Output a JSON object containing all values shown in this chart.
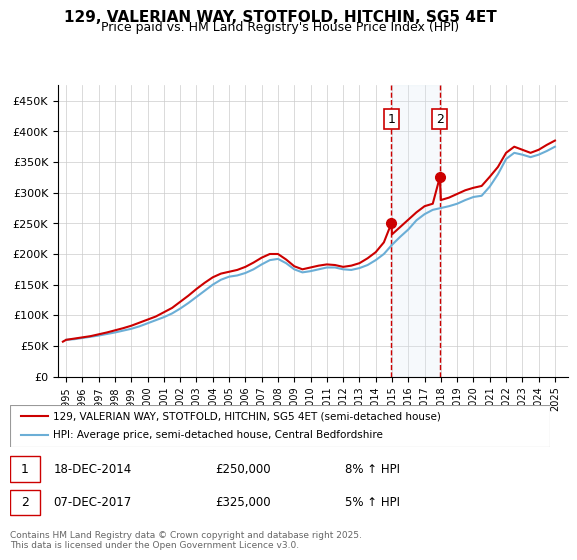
{
  "title": "129, VALERIAN WAY, STOTFOLD, HITCHIN, SG5 4ET",
  "subtitle": "Price paid vs. HM Land Registry's House Price Index (HPI)",
  "legend_line1": "129, VALERIAN WAY, STOTFOLD, HITCHIN, SG5 4ET (semi-detached house)",
  "legend_line2": "HPI: Average price, semi-detached house, Central Bedfordshire",
  "annotation1_label": "1",
  "annotation1_date": "18-DEC-2014",
  "annotation1_price": "£250,000",
  "annotation1_hpi": "8% ↑ HPI",
  "annotation2_label": "2",
  "annotation2_date": "07-DEC-2017",
  "annotation2_price": "£325,000",
  "annotation2_hpi": "5% ↑ HPI",
  "footer": "Contains HM Land Registry data © Crown copyright and database right 2025.\nThis data is licensed under the Open Government Licence v3.0.",
  "sale1_x": 2014.96,
  "sale1_y": 250000,
  "sale2_x": 2017.93,
  "sale2_y": 325000,
  "hpi_color": "#6baed6",
  "price_color": "#cc0000",
  "shade_color": "#dce9f5",
  "vline_color": "#cc0000",
  "ylim": [
    0,
    475000
  ],
  "xlim_start": 1994.5,
  "xlim_end": 2025.8,
  "yticks": [
    0,
    50000,
    100000,
    150000,
    200000,
    250000,
    300000,
    350000,
    400000,
    450000
  ],
  "ytick_labels": [
    "£0",
    "£50K",
    "£100K",
    "£150K",
    "£200K",
    "£250K",
    "£300K",
    "£350K",
    "£400K",
    "£450K"
  ],
  "xticks": [
    1995,
    1996,
    1997,
    1998,
    1999,
    2000,
    2001,
    2002,
    2003,
    2004,
    2005,
    2006,
    2007,
    2008,
    2009,
    2010,
    2011,
    2012,
    2013,
    2014,
    2015,
    2016,
    2017,
    2018,
    2019,
    2020,
    2021,
    2022,
    2023,
    2024,
    2025
  ],
  "hpi_x": [
    1995,
    1995.5,
    1996,
    1996.5,
    1997,
    1997.5,
    1998,
    1998.5,
    1999,
    1999.5,
    2000,
    2000.5,
    2001,
    2001.5,
    2002,
    2002.5,
    2003,
    2003.5,
    2004,
    2004.5,
    2005,
    2005.5,
    2006,
    2006.5,
    2007,
    2007.5,
    2008,
    2008.5,
    2009,
    2009.5,
    2010,
    2010.5,
    2011,
    2011.5,
    2012,
    2012.5,
    2013,
    2013.5,
    2014,
    2014.5,
    2015,
    2015.5,
    2016,
    2016.5,
    2017,
    2017.5,
    2018,
    2018.5,
    2019,
    2019.5,
    2020,
    2020.5,
    2021,
    2021.5,
    2022,
    2022.5,
    2023,
    2023.5,
    2024,
    2024.5,
    2025
  ],
  "hpi_y": [
    60000,
    61000,
    63000,
    65000,
    67000,
    69500,
    72000,
    75000,
    78000,
    82000,
    87000,
    92000,
    97000,
    103000,
    111000,
    120000,
    130000,
    140000,
    150000,
    158000,
    163000,
    165000,
    169000,
    175000,
    183000,
    190000,
    192000,
    185000,
    175000,
    170000,
    172000,
    175000,
    178000,
    178000,
    175000,
    174000,
    177000,
    182000,
    190000,
    200000,
    215000,
    228000,
    240000,
    255000,
    265000,
    272000,
    275000,
    278000,
    282000,
    288000,
    293000,
    295000,
    310000,
    330000,
    355000,
    365000,
    362000,
    358000,
    362000,
    368000,
    375000
  ],
  "price_x": [
    1994.8,
    1995,
    1995.5,
    1996,
    1996.5,
    1997,
    1997.5,
    1998,
    1998.5,
    1999,
    1999.5,
    2000,
    2000.5,
    2001,
    2001.5,
    2002,
    2002.5,
    2003,
    2003.5,
    2004,
    2004.5,
    2005,
    2005.5,
    2006,
    2006.5,
    2007,
    2007.5,
    2008,
    2008.5,
    2009,
    2009.5,
    2010,
    2010.5,
    2011,
    2011.5,
    2012,
    2012.5,
    2013,
    2013.5,
    2014,
    2014.5,
    2014.96,
    2015,
    2015.5,
    2016,
    2016.5,
    2017,
    2017.5,
    2017.93,
    2018,
    2018.5,
    2019,
    2019.5,
    2020,
    2020.5,
    2021,
    2021.5,
    2022,
    2022.5,
    2023,
    2023.5,
    2024,
    2024.5,
    2025
  ],
  "price_y": [
    57000,
    60000,
    62000,
    64000,
    66000,
    69000,
    72000,
    75500,
    79000,
    83000,
    88000,
    93000,
    98000,
    105000,
    112000,
    122000,
    132000,
    143000,
    153000,
    162000,
    168000,
    171000,
    174000,
    179000,
    186000,
    194000,
    200000,
    200000,
    191000,
    180000,
    175000,
    178000,
    181000,
    183000,
    182000,
    179000,
    181000,
    185000,
    193000,
    203000,
    219000,
    250000,
    232000,
    244000,
    256000,
    268000,
    278000,
    282000,
    325000,
    288000,
    292000,
    298000,
    304000,
    308000,
    311000,
    326000,
    342000,
    365000,
    375000,
    370000,
    365000,
    370000,
    378000,
    385000
  ]
}
